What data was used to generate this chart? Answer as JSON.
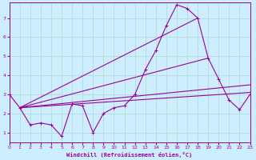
{
  "xlabel": "Windchill (Refroidissement éolien,°C)",
  "bg_color": "#cceeff",
  "line_color": "#990099",
  "grid_color": "#b0d8cc",
  "xlim": [
    0,
    23
  ],
  "ylim": [
    0.5,
    7.8
  ],
  "xticks": [
    0,
    1,
    2,
    3,
    4,
    5,
    6,
    7,
    8,
    9,
    10,
    11,
    12,
    13,
    14,
    15,
    16,
    17,
    18,
    19,
    20,
    21,
    22,
    23
  ],
  "yticks": [
    1,
    2,
    3,
    4,
    5,
    6,
    7
  ],
  "main_x": [
    0,
    1,
    2,
    3,
    4,
    5,
    6,
    7,
    8,
    9,
    10,
    11,
    12,
    13,
    14,
    15,
    16,
    17,
    18,
    19,
    20,
    21,
    22,
    23
  ],
  "main_y": [
    3.0,
    2.3,
    1.4,
    1.5,
    1.4,
    0.8,
    2.5,
    2.4,
    1.0,
    2.0,
    2.3,
    2.4,
    3.0,
    4.3,
    5.3,
    6.6,
    7.7,
    7.5,
    7.0,
    4.9,
    3.8,
    2.7,
    2.2,
    3.0
  ],
  "straight_lines": [
    {
      "x0": 1,
      "y0": 2.3,
      "x1": 23,
      "y1": 3.1
    },
    {
      "x0": 1,
      "y0": 2.3,
      "x1": 23,
      "y1": 3.5
    },
    {
      "x0": 1,
      "y0": 2.3,
      "x1": 19,
      "y1": 4.9
    },
    {
      "x0": 1,
      "y0": 2.3,
      "x1": 18,
      "y1": 7.0
    }
  ]
}
